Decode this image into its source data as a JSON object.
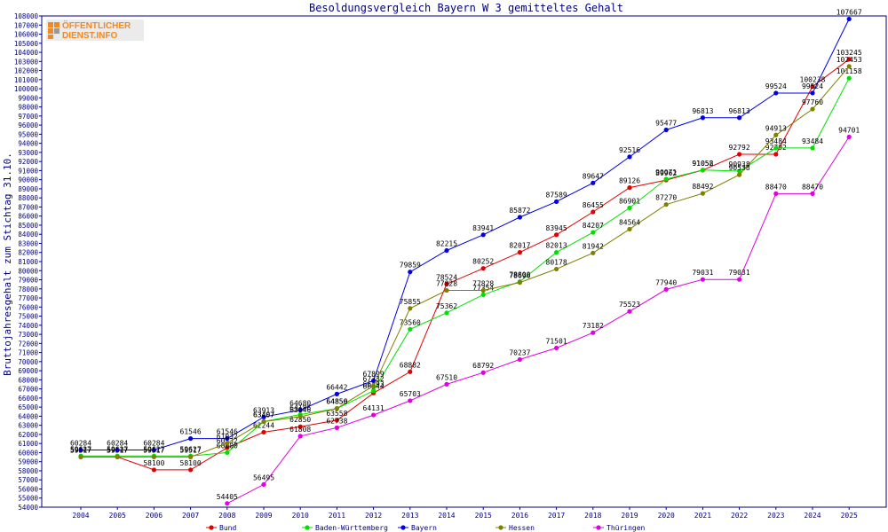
{
  "chart_data": {
    "type": "line",
    "title": "Besoldungsvergleich Bayern W 3 gemitteltes Gehalt",
    "ylabel": "Bruttojahresgehalt zum Stichtag 31.10.",
    "xlabel": "",
    "ylim": [
      54000,
      108000
    ],
    "ytick_step": 1000,
    "grid": false,
    "legend_position": "bottom",
    "x": [
      "2004",
      "2005",
      "2006",
      "2007",
      "2008",
      "2009",
      "2010",
      "2011",
      "2012",
      "2013",
      "2014",
      "2015",
      "2016",
      "2017",
      "2018",
      "2019",
      "2020",
      "2021",
      "2022",
      "2023",
      "2024",
      "2025"
    ],
    "series": [
      {
        "name": "Bund",
        "color": "#e00000",
        "values": [
          59517,
          59517,
          58100,
          58100,
          60532,
          62244,
          62850,
          63558,
          66544,
          68882,
          78524,
          80252,
          82017,
          83945,
          86455,
          89126,
          89962,
          91052,
          92792,
          92792,
          100238,
          103245
        ]
      },
      {
        "name": "Baden-Württemberg",
        "color": "#00e000",
        "values": [
          59627,
          59627,
          59627,
          59627,
          60000,
          63407,
          64186,
          64850,
          66793,
          73560,
          75362,
          77354,
          78800,
          82013,
          84207,
          86901,
          90071,
          91058,
          90938,
          93484,
          93484,
          101158
        ]
      },
      {
        "name": "Bayern",
        "color": "#0000e0",
        "values": [
          60284,
          60284,
          60284,
          61546,
          61546,
          63913,
          64680,
          66442,
          67899,
          79859,
          82215,
          83941,
          85872,
          87589,
          89647,
          92516,
          95477,
          96813,
          96813,
          99524,
          99524,
          107667
        ]
      },
      {
        "name": "Hessen",
        "color": "#808000",
        "values": [
          59517,
          59517,
          59517,
          59517,
          61032,
          63407,
          63946,
          64856,
          67332,
          75855,
          77828,
          77828,
          78696,
          80178,
          81942,
          84564,
          87270,
          88492,
          90538,
          94913,
          97760,
          102453
        ]
      },
      {
        "name": "Thüringen",
        "color": "#e000e0",
        "values": [
          null,
          null,
          null,
          null,
          54405,
          56495,
          61808,
          62738,
          64131,
          65703,
          67510,
          68792,
          70237,
          71501,
          73182,
          75523,
          77940,
          79031,
          79031,
          88470,
          88470,
          94701
        ]
      }
    ]
  },
  "logo": {
    "line1": "ÖFFENTLICHER",
    "line2": "DIENST.INFO",
    "color": "#f08a24"
  }
}
